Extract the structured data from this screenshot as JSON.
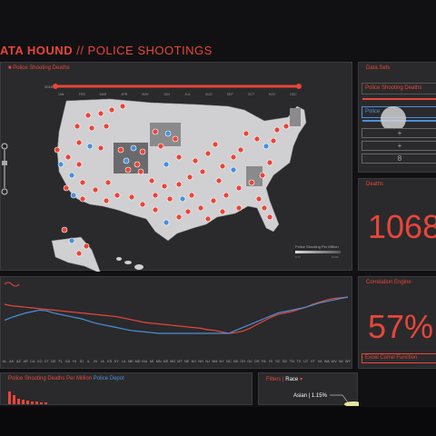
{
  "app": {
    "title_bold": "ATA HOUND",
    "title_rest": " // POLICE SHOOTINGS"
  },
  "map_panel": {
    "title": "Police Shooting Deaths",
    "legend_title": "Police Shooting Per Million",
    "legend_min": "0.77",
    "legend_max": "10.84"
  },
  "timeline": {
    "months": [
      "JAN",
      "FEB",
      "MAR",
      "APR",
      "MAY",
      "JUN",
      "JUL",
      "AUG",
      "SEP",
      "OCT",
      "NOV",
      "DEC"
    ],
    "start_label": "2015"
  },
  "data_sets": {
    "title": "Data Sets",
    "items": [
      {
        "label": "Police Shooting Deaths"
      },
      {
        "label": "Police"
      }
    ],
    "buttons": [
      {
        "label": "+"
      },
      {
        "label": "+"
      },
      {
        "label": "8"
      }
    ]
  },
  "deaths": {
    "title": "Deaths",
    "value": "1068"
  },
  "correlation": {
    "title": "Correlation Engine",
    "value": "57%",
    "button": "Excel Correl Function"
  },
  "bars_panel": {
    "title": "Police Shooting Deaths Per Million",
    "title_alt": "Police Depot"
  },
  "filters": {
    "title": "Filters",
    "title_alt": "Race",
    "item": "Asian | 1.15%"
  },
  "colors": {
    "accent": "#e8463a",
    "blue": "#4a90d9",
    "panel": "#2a2a2c"
  },
  "chart_data": {
    "type": "line",
    "categories": [
      "AL",
      "AK",
      "AZ",
      "AR",
      "CA",
      "CO",
      "CT",
      "DE",
      "FL",
      "GA",
      "HI",
      "ID",
      "IL",
      "IN",
      "IA",
      "KS",
      "KY",
      "LA",
      "ME",
      "MD",
      "MA",
      "MI",
      "MN",
      "MS",
      "MO",
      "MT",
      "NE",
      "NV",
      "NH",
      "NJ",
      "NM",
      "NY",
      "NC",
      "ND",
      "OH",
      "OK",
      "OR",
      "PA",
      "RI",
      "SC",
      "SD",
      "TN",
      "TX",
      "UT",
      "VT",
      "VA",
      "WA",
      "WV",
      "WI",
      "WY"
    ],
    "ylim": [
      0,
      100
    ],
    "series": [
      {
        "color": "#e8463a",
        "values": [
          70,
          68,
          67,
          66,
          65,
          64,
          63,
          62,
          61,
          60,
          59,
          58,
          57,
          56,
          55,
          54,
          53,
          51,
          49,
          47,
          45,
          44,
          43,
          42,
          41,
          40,
          39,
          38,
          37,
          35,
          34,
          32,
          30,
          31,
          33,
          37,
          42,
          47,
          52,
          56,
          58,
          60,
          63,
          66,
          70,
          73,
          76,
          78,
          79,
          80
        ]
      },
      {
        "color": "#4a90d9",
        "values": [
          48,
          52,
          55,
          58,
          60,
          62,
          61,
          58,
          56,
          54,
          52,
          50,
          47,
          44,
          42,
          40,
          38,
          36,
          34,
          33,
          32,
          31,
          30,
          30,
          30,
          30,
          30,
          30,
          30,
          30,
          30,
          30,
          30,
          34,
          38,
          42,
          46,
          50,
          54,
          58,
          60,
          62,
          64,
          66,
          69,
          72,
          74,
          76,
          78,
          80
        ]
      }
    ]
  }
}
